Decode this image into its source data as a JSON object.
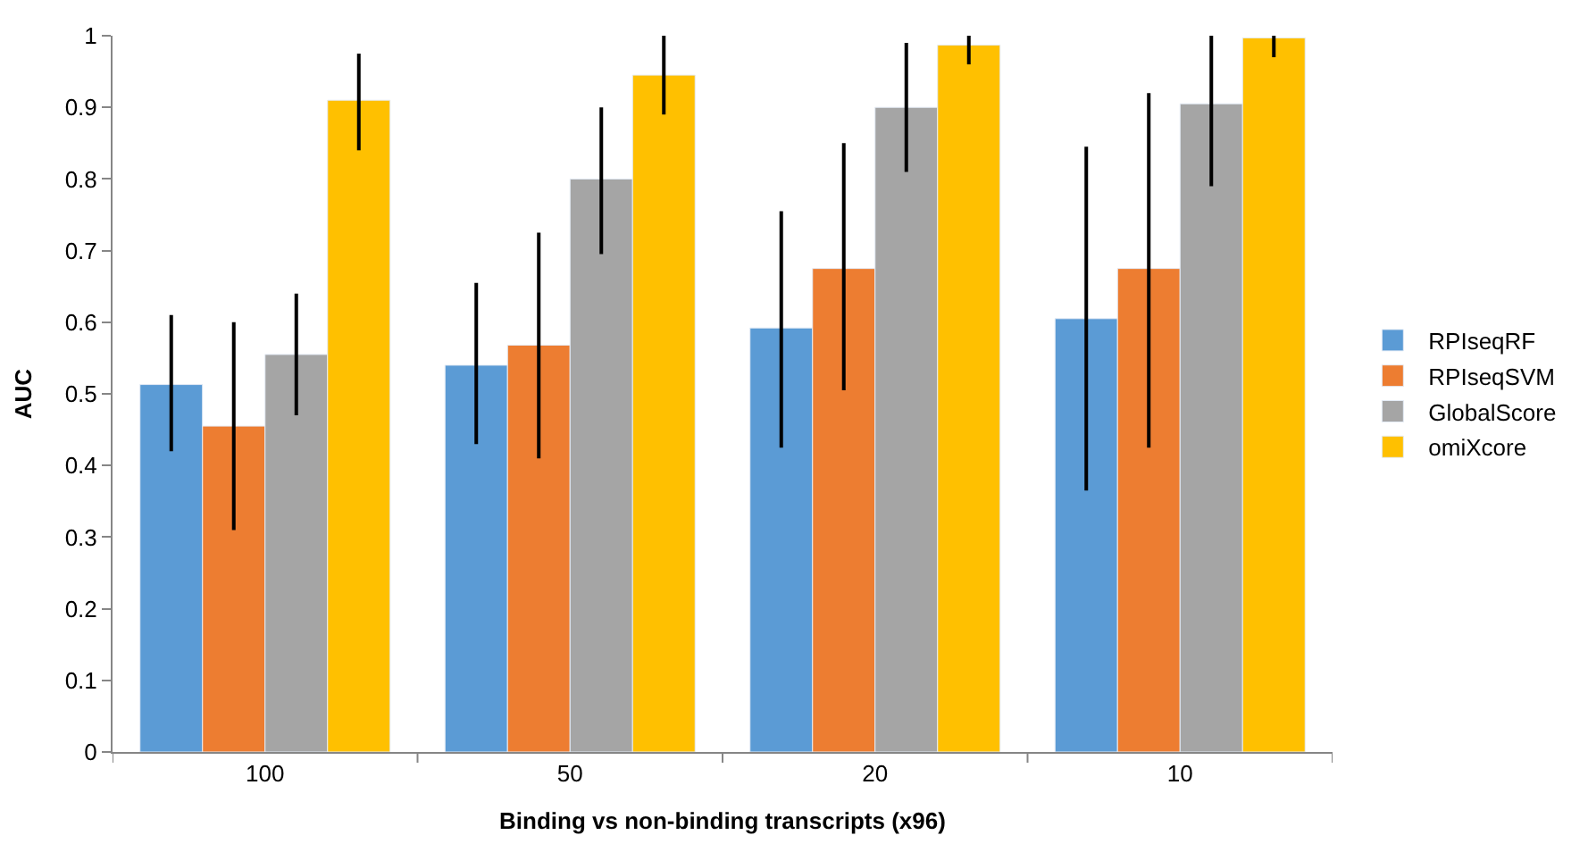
{
  "chart_data": {
    "type": "bar",
    "xlabel": "Binding vs non-binding transcripts (x96)",
    "ylabel": "AUC",
    "categories": [
      "100",
      "50",
      "20",
      "10"
    ],
    "ylim": [
      0,
      1
    ],
    "yticks": [
      0,
      0.1,
      0.2,
      0.3,
      0.4,
      0.5,
      0.6,
      0.7,
      0.8,
      0.9,
      1
    ],
    "legend": "right",
    "series": [
      {
        "name": "RPIseqRF",
        "color": "#5b9bd5",
        "values": [
          0.513,
          0.54,
          0.592,
          0.605
        ],
        "errors": [
          [
            0.42,
            0.61
          ],
          [
            0.43,
            0.655
          ],
          [
            0.425,
            0.755
          ],
          [
            0.365,
            0.845
          ]
        ]
      },
      {
        "name": "RPIseqSVM",
        "color": "#ed7d31",
        "values": [
          0.455,
          0.568,
          0.675,
          0.675
        ],
        "errors": [
          [
            0.31,
            0.6
          ],
          [
            0.41,
            0.725
          ],
          [
            0.505,
            0.85
          ],
          [
            0.425,
            0.92
          ]
        ]
      },
      {
        "name": "GlobalScore",
        "color": "#a5a5a5",
        "values": [
          0.555,
          0.8,
          0.9,
          0.905
        ],
        "errors": [
          [
            0.47,
            0.64
          ],
          [
            0.695,
            0.9
          ],
          [
            0.81,
            0.99
          ],
          [
            0.79,
            1.0
          ]
        ]
      },
      {
        "name": "omiXcore",
        "color": "#ffc000",
        "values": [
          0.91,
          0.945,
          0.987,
          0.997
        ],
        "errors": [
          [
            0.84,
            0.975
          ],
          [
            0.89,
            1.0
          ],
          [
            0.96,
            1.0
          ],
          [
            0.97,
            1.0
          ]
        ]
      }
    ]
  }
}
